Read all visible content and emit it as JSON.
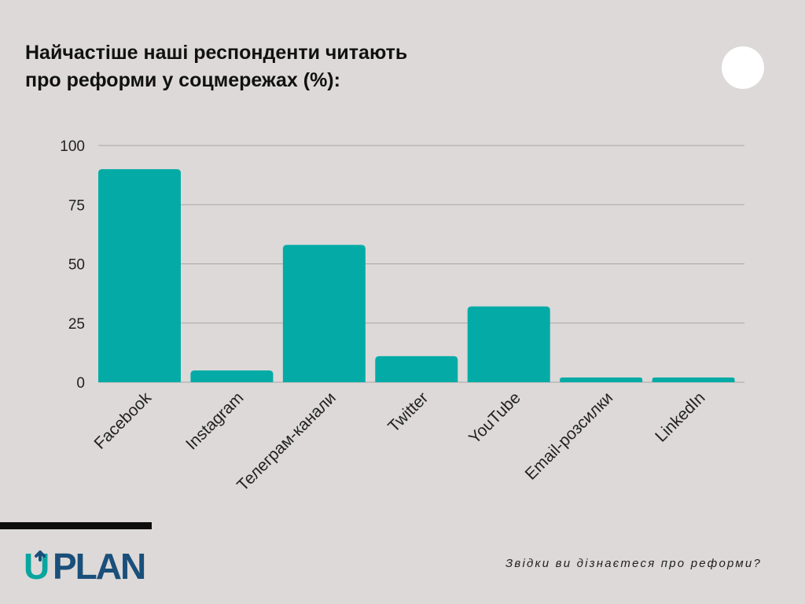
{
  "title_lines": [
    "Найчастіше наші респонденти читають",
    "про реформи у соцмережах (%):"
  ],
  "caption": "Звідки ви дізнаєтеся про реформи?",
  "logo": {
    "text_prefix": "U",
    "text_rest": "PLAN",
    "color": "#1a4f7a",
    "accent": "#0aa59f"
  },
  "colors": {
    "background": "#dcd9d8",
    "bar": "#04aba6",
    "grid": "#a9a6a5"
  },
  "chart_data": {
    "type": "bar",
    "categories": [
      "Facebook",
      "Instagram",
      "Телеграм-канали",
      "Twitter",
      "YouTube",
      "Email-розсилки",
      "LinkedIn"
    ],
    "values": [
      90,
      5,
      58,
      11,
      32,
      2,
      2
    ],
    "ylim": [
      0,
      100
    ],
    "yticks": [
      0,
      25,
      50,
      75,
      100
    ],
    "grid": true
  }
}
